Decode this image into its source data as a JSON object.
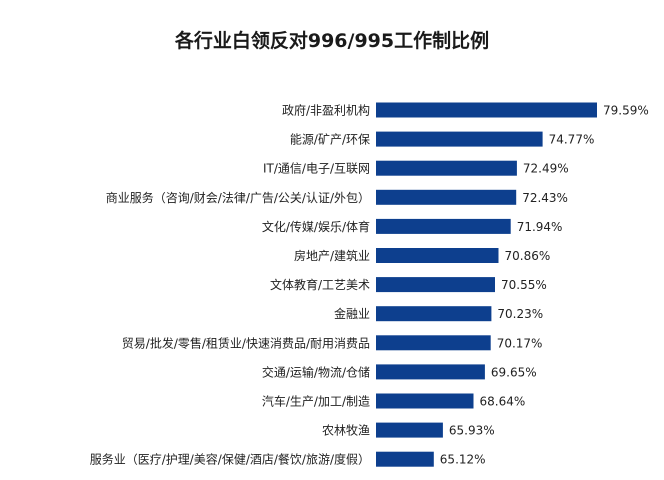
{
  "chart_data": {
    "type": "bar",
    "orientation": "horizontal",
    "title": "各行业白领反对996/995工作制比例",
    "xlabel": "",
    "ylabel": "",
    "xlim": [
      60,
      80
    ],
    "grid": false,
    "legend": "none",
    "bar_color": "#0d3f8e",
    "categories": [
      "政府/非盈利机构",
      "能源/矿产/环保",
      "IT/通信/电子/互联网",
      "商业服务（咨询/财会/法律/广告/公关/认证/外包）",
      "文化/传媒/娱乐/体育",
      "房地产/建筑业",
      "文体教育/工艺美术",
      "金融业",
      "贸易/批发/零售/租赁业/快速消费品/耐用消费品",
      "交通/运输/物流/仓储",
      "汽车/生产/加工/制造",
      "农林牧渔",
      "服务业（医疗/护理/美容/保健/酒店/餐饮/旅游/度假）"
    ],
    "values": [
      79.59,
      74.77,
      72.49,
      72.43,
      71.94,
      70.86,
      70.55,
      70.23,
      70.17,
      69.65,
      68.64,
      65.93,
      65.12
    ],
    "value_labels": [
      "79.59%",
      "74.77%",
      "72.49%",
      "72.43%",
      "71.94%",
      "70.86%",
      "70.55%",
      "70.23%",
      "70.17%",
      "69.65%",
      "68.64%",
      "65.93%",
      "65.12%"
    ]
  }
}
